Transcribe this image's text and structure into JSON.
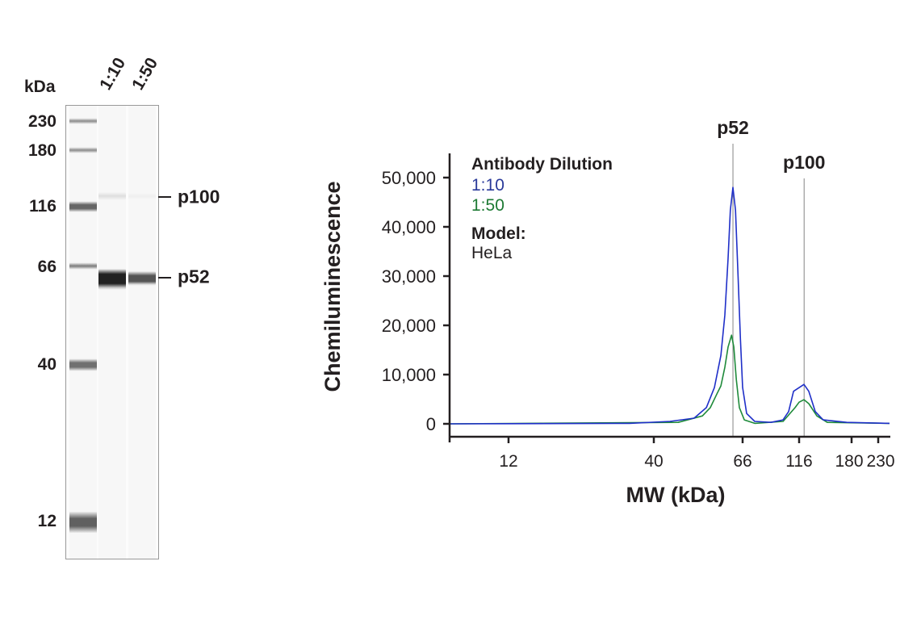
{
  "blot": {
    "unit_label": "kDa",
    "lane_labels": [
      "1:10",
      "1:50"
    ],
    "marker_labels": [
      "230",
      "180",
      "116",
      "66",
      "40",
      "12"
    ],
    "band_labels": [
      "p100",
      "p52"
    ]
  },
  "chart_data": {
    "type": "line",
    "xlabel": "MW (kDa)",
    "ylabel": "Chemiluminescence",
    "x_scale": "nonlinear (migration-based MW axis)",
    "x_ticks": [
      12,
      40,
      66,
      116,
      180,
      230
    ],
    "x_tick_labels": [
      "12",
      "40",
      "66",
      "116",
      "180",
      "230"
    ],
    "xlim": [
      7.4,
      255
    ],
    "ylim": [
      0,
      50000
    ],
    "y_ticks": [
      0,
      10000,
      20000,
      30000,
      40000,
      50000
    ],
    "y_tick_labels": [
      "0",
      "10,000",
      "20,000",
      "30,000",
      "40,000",
      "50,000"
    ],
    "grid": false,
    "legend": {
      "title": "Antibody Dilution",
      "placement": "top-left",
      "model_label": "Model:",
      "model_value": "HeLa"
    },
    "annotations": [
      {
        "label": "p52",
        "x": 62.5
      },
      {
        "label": "p100",
        "x": 121
      }
    ],
    "series": [
      {
        "name": "1:10",
        "color": "#1f2fc8",
        "x": [
          7.4,
          32.7,
          43.8,
          50.2,
          53.8,
          56.3,
          58.4,
          59.7,
          60.8,
          61.6,
          62.5,
          63.4,
          64.3,
          65.2,
          66,
          68.7,
          74.5,
          87.5,
          98.8,
          104.5,
          109.7,
          120.8,
          125.8,
          132.8,
          141.9,
          172.9,
          255
        ],
        "y": [
          0,
          100,
          500,
          1150,
          3300,
          7400,
          13900,
          22100,
          33600,
          43400,
          48000,
          43400,
          30300,
          17200,
          7400,
          2100,
          500,
          300,
          800,
          2500,
          6600,
          8000,
          6600,
          2500,
          800,
          300,
          100
        ]
      },
      {
        "name": "1:50",
        "color": "#1e8a3a",
        "x": [
          7.4,
          45.9,
          52.6,
          55.0,
          57.1,
          58.4,
          59.7,
          60.8,
          62.0,
          62.8,
          63.7,
          64.8,
          67.1,
          74.5,
          98.8,
          111.4,
          116,
          120.8,
          125.8,
          134.6,
          146.9,
          255
        ],
        "y": [
          0,
          300,
          1600,
          3300,
          6100,
          7700,
          11500,
          15600,
          18000,
          15600,
          9000,
          3300,
          800,
          100,
          500,
          3300,
          4400,
          4900,
          4100,
          1600,
          300,
          100
        ]
      }
    ]
  }
}
